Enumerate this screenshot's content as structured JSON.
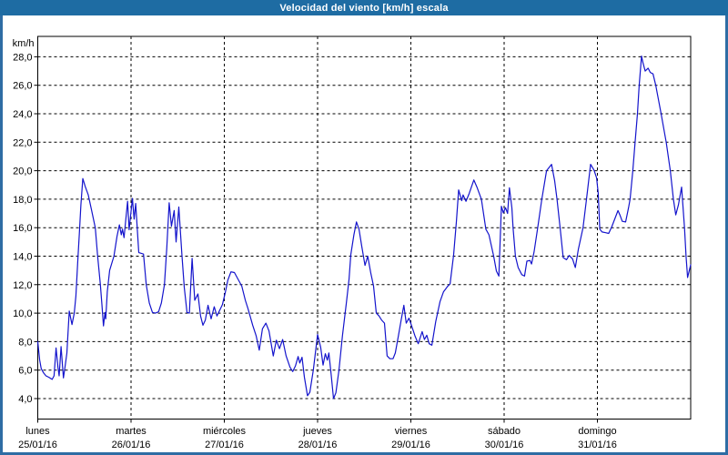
{
  "window": {
    "title": "Velocidad del viento [km/h] escala"
  },
  "colors": {
    "titlebar": "#1e6ca3",
    "window_border": "#2e6da4",
    "title_text": "#ffffff",
    "plot_border": "#000000",
    "grid": "#000000",
    "line": "#1414cc",
    "background": "#ffffff"
  },
  "chart_data": {
    "type": "line",
    "title": "Velocidad del viento [km/h] escala",
    "unit_label": "km/h",
    "ylabel": "km/h",
    "xlabel": "",
    "legend": "none",
    "grid": "dashed",
    "ylim": [
      2.6,
      29.4
    ],
    "y_ticks": [
      4,
      6,
      8,
      10,
      12,
      14,
      16,
      18,
      20,
      22,
      24,
      26,
      28
    ],
    "y_tick_labels": [
      "4,0",
      "6,0",
      "8,0",
      "10,0",
      "12,0",
      "14,0",
      "16,0",
      "18,0",
      "20,0",
      "22,0",
      "24,0",
      "26,0",
      "28,0"
    ],
    "x_range_hours": [
      0,
      168
    ],
    "day_boundaries_hours": [
      0,
      24,
      48,
      72,
      96,
      120,
      144
    ],
    "x_days": [
      {
        "name": "lunes",
        "date": "25/01/16"
      },
      {
        "name": "martes",
        "date": "26/01/16"
      },
      {
        "name": "miércoles",
        "date": "27/01/16"
      },
      {
        "name": "jueves",
        "date": "28/01/16"
      },
      {
        "name": "viernes",
        "date": "29/01/16"
      },
      {
        "name": "sábado",
        "date": "30/01/16"
      },
      {
        "name": "domingo",
        "date": "31/01/16"
      }
    ],
    "series": [
      {
        "name": "Velocidad del viento",
        "units": "km/h",
        "points": [
          [
            0,
            8
          ],
          [
            0.5,
            6.7
          ],
          [
            0.9,
            6.1
          ],
          [
            1.5,
            5.8
          ],
          [
            2.1,
            5.6
          ],
          [
            2.8,
            5.5
          ],
          [
            3.7,
            5.35
          ],
          [
            4.2,
            5.6
          ],
          [
            4.7,
            7.55
          ],
          [
            5.2,
            6.2
          ],
          [
            5.5,
            5.6
          ],
          [
            6,
            7.65
          ],
          [
            6.6,
            5.45
          ],
          [
            7,
            6.2
          ],
          [
            7.5,
            7.2
          ],
          [
            8.1,
            10.15
          ],
          [
            8.8,
            9.2
          ],
          [
            9.4,
            10
          ],
          [
            9.8,
            11.2
          ],
          [
            10.3,
            13.7
          ],
          [
            10.7,
            15.6
          ],
          [
            11.1,
            17.6
          ],
          [
            11.6,
            19.45
          ],
          [
            12.2,
            18.9
          ],
          [
            13,
            18.3
          ],
          [
            13.8,
            17.3
          ],
          [
            14.8,
            16
          ],
          [
            15.4,
            14
          ],
          [
            16.1,
            12
          ],
          [
            16.5,
            10.6
          ],
          [
            16.9,
            9.1
          ],
          [
            17.3,
            10.05
          ],
          [
            17.5,
            9.6
          ],
          [
            17.9,
            11.5
          ],
          [
            18.5,
            13
          ],
          [
            19.6,
            14
          ],
          [
            20.4,
            15.4
          ],
          [
            21,
            16.2
          ],
          [
            21.5,
            15.5
          ],
          [
            21.8,
            15.9
          ],
          [
            22.2,
            15.3
          ],
          [
            23.1,
            17.85
          ],
          [
            23.5,
            15.85
          ],
          [
            24.35,
            18.05
          ],
          [
            24.8,
            16.6
          ],
          [
            25.2,
            17.7
          ],
          [
            26,
            14.25
          ],
          [
            27.2,
            14.15
          ],
          [
            27.9,
            12
          ],
          [
            28.7,
            10.7
          ],
          [
            29.5,
            10.05
          ],
          [
            30.3,
            10
          ],
          [
            31.1,
            10.1
          ],
          [
            31.8,
            10.7
          ],
          [
            32.6,
            12
          ],
          [
            33.2,
            14.6
          ],
          [
            33.8,
            17.75
          ],
          [
            34.4,
            16.1
          ],
          [
            35.1,
            17.2
          ],
          [
            35.6,
            15
          ],
          [
            36.3,
            17.45
          ],
          [
            37.1,
            14.1
          ],
          [
            37.7,
            11.8
          ],
          [
            38.4,
            10.05
          ],
          [
            39,
            10
          ],
          [
            39.7,
            13.85
          ],
          [
            40.4,
            10.9
          ],
          [
            41.2,
            11.35
          ],
          [
            41.9,
            9.8
          ],
          [
            42.5,
            9.15
          ],
          [
            43.1,
            9.5
          ],
          [
            43.8,
            10.55
          ],
          [
            44.6,
            9.6
          ],
          [
            45.4,
            10.45
          ],
          [
            46.1,
            9.8
          ],
          [
            47,
            10.3
          ],
          [
            47.5,
            10.6
          ],
          [
            48.2,
            11.4
          ],
          [
            48.9,
            12.3
          ],
          [
            49.7,
            12.9
          ],
          [
            50.6,
            12.85
          ],
          [
            51.5,
            12.4
          ],
          [
            52.5,
            11.9
          ],
          [
            53.4,
            10.9
          ],
          [
            54.1,
            10.3
          ],
          [
            55.3,
            9.15
          ],
          [
            56.2,
            8.4
          ],
          [
            57,
            7.4
          ],
          [
            57.8,
            8.9
          ],
          [
            58.7,
            9.3
          ],
          [
            59.5,
            8.75
          ],
          [
            60.6,
            7
          ],
          [
            61.4,
            8.1
          ],
          [
            62.2,
            7.5
          ],
          [
            63,
            8.15
          ],
          [
            63.9,
            7
          ],
          [
            64.9,
            6.2
          ],
          [
            65.6,
            5.9
          ],
          [
            66.3,
            6.3
          ],
          [
            67,
            6.95
          ],
          [
            67.4,
            6.5
          ],
          [
            68,
            6.9
          ],
          [
            68.6,
            5.5
          ],
          [
            69.4,
            4.2
          ],
          [
            70,
            4.45
          ],
          [
            70.9,
            6
          ],
          [
            72,
            8.5
          ],
          [
            72.8,
            7.6
          ],
          [
            73.4,
            6.35
          ],
          [
            74,
            7.15
          ],
          [
            74.5,
            6.7
          ],
          [
            74.9,
            7.2
          ],
          [
            75.5,
            5.7
          ],
          [
            76.1,
            4
          ],
          [
            76.7,
            4.4
          ],
          [
            77.5,
            6
          ],
          [
            78.4,
            8.4
          ],
          [
            79.4,
            10.7
          ],
          [
            80.1,
            12.4
          ],
          [
            80.55,
            14.1
          ],
          [
            81.35,
            15.5
          ],
          [
            82,
            16.4
          ],
          [
            82.65,
            15.9
          ],
          [
            83.35,
            14.7
          ],
          [
            84.2,
            13.35
          ],
          [
            84.9,
            14
          ],
          [
            85.7,
            12.8
          ],
          [
            86.4,
            11.9
          ],
          [
            87.1,
            10
          ],
          [
            87.8,
            9.8
          ],
          [
            88.5,
            9.5
          ],
          [
            89.2,
            9.3
          ],
          [
            89.9,
            7
          ],
          [
            90.6,
            6.8
          ],
          [
            91.4,
            6.8
          ],
          [
            92,
            7.2
          ],
          [
            92.8,
            8.4
          ],
          [
            93.5,
            9.5
          ],
          [
            94.2,
            10.55
          ],
          [
            94.8,
            9.3
          ],
          [
            95.5,
            9.65
          ],
          [
            96.2,
            9.1
          ],
          [
            97.05,
            8.4
          ],
          [
            97.9,
            7.85
          ],
          [
            98.9,
            8.7
          ],
          [
            99.5,
            8.15
          ],
          [
            100.1,
            8.45
          ],
          [
            100.7,
            7.85
          ],
          [
            101.4,
            7.75
          ],
          [
            102.4,
            9.4
          ],
          [
            103.5,
            10.8
          ],
          [
            104.4,
            11.5
          ],
          [
            105.5,
            11.9
          ],
          [
            106.1,
            12.05
          ],
          [
            107,
            14.1
          ],
          [
            107.7,
            16.4
          ],
          [
            108.3,
            18.65
          ],
          [
            109.1,
            17.9
          ],
          [
            109.45,
            18.3
          ],
          [
            110.2,
            17.85
          ],
          [
            111,
            18.4
          ],
          [
            112.2,
            19.35
          ],
          [
            113,
            18.85
          ],
          [
            114.15,
            18
          ],
          [
            115.3,
            15.9
          ],
          [
            116.1,
            15.5
          ],
          [
            117.3,
            14
          ],
          [
            118,
            12.95
          ],
          [
            118.65,
            12.6
          ],
          [
            119.3,
            17.5
          ],
          [
            119.8,
            17.05
          ],
          [
            120.35,
            17.4
          ],
          [
            120.9,
            17
          ],
          [
            121.35,
            18.8
          ],
          [
            122,
            17.4
          ],
          [
            122.3,
            16
          ],
          [
            122.9,
            14
          ],
          [
            123.6,
            13.2
          ],
          [
            124.55,
            12.7
          ],
          [
            125.25,
            12.6
          ],
          [
            125.85,
            13.65
          ],
          [
            126.65,
            13.7
          ],
          [
            127.05,
            13.45
          ],
          [
            127.7,
            14.3
          ],
          [
            128.65,
            16
          ],
          [
            129.7,
            18
          ],
          [
            130.9,
            20
          ],
          [
            132.2,
            20.45
          ],
          [
            133,
            19.3
          ],
          [
            133.6,
            18
          ],
          [
            134.4,
            16
          ],
          [
            135.2,
            13.9
          ],
          [
            136.05,
            13.75
          ],
          [
            136.75,
            14.05
          ],
          [
            137.6,
            13.8
          ],
          [
            138.3,
            13.2
          ],
          [
            139.1,
            14.5
          ],
          [
            140.3,
            16
          ],
          [
            141.2,
            18
          ],
          [
            142.25,
            20.45
          ],
          [
            143.1,
            20.05
          ],
          [
            143.8,
            19.5
          ],
          [
            144.2,
            18.4
          ],
          [
            144.6,
            15.9
          ],
          [
            145.2,
            15.7
          ],
          [
            146.1,
            15.65
          ],
          [
            146.9,
            15.6
          ],
          [
            147.75,
            16.1
          ],
          [
            149.3,
            17.2
          ],
          [
            149.85,
            16.85
          ],
          [
            150.4,
            16.45
          ],
          [
            151.25,
            16.4
          ],
          [
            152,
            17.4
          ],
          [
            152.4,
            18
          ],
          [
            153.1,
            20
          ],
          [
            153.7,
            22
          ],
          [
            154.3,
            24
          ],
          [
            154.75,
            26
          ],
          [
            155.35,
            28.05
          ],
          [
            155.7,
            27.6
          ],
          [
            156.3,
            27
          ],
          [
            157.05,
            27.2
          ],
          [
            157.6,
            26.9
          ],
          [
            158.3,
            26.8
          ],
          [
            159,
            26
          ],
          [
            160.4,
            24
          ],
          [
            161.7,
            22
          ],
          [
            162.75,
            20
          ],
          [
            163.55,
            18
          ],
          [
            164.15,
            16.9
          ],
          [
            164.85,
            17.6
          ],
          [
            165.65,
            18.85
          ],
          [
            166.4,
            16
          ],
          [
            166.8,
            14
          ],
          [
            167.2,
            12.5
          ],
          [
            168,
            13.4
          ]
        ]
      }
    ]
  }
}
